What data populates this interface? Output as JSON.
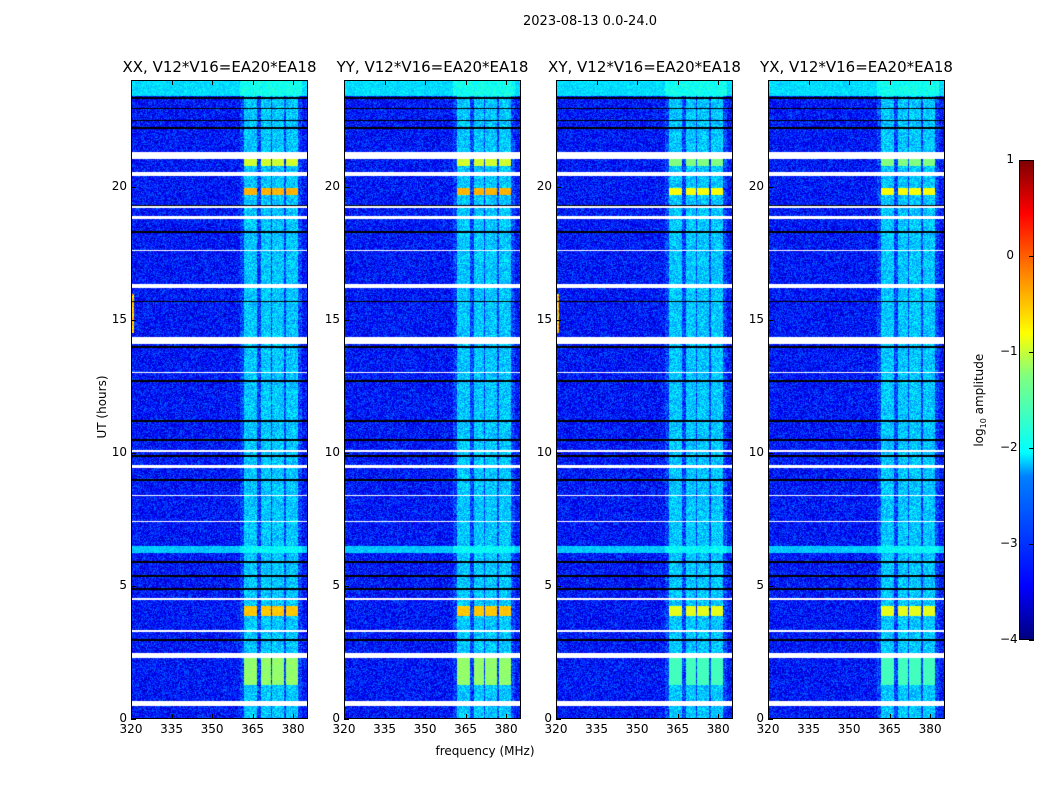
{
  "chart_data": {
    "type": "heatmap",
    "title": "2023-08-13 0.0-24.0",
    "xlabel": "frequency (MHz)",
    "ylabel": "UT (hours)",
    "xlim": [
      320,
      385.5
    ],
    "ylim": [
      0,
      24
    ],
    "xticks": [
      "320",
      "335",
      "350",
      "365",
      "380"
    ],
    "xtick_values": [
      320,
      335,
      350,
      365,
      380
    ],
    "yticks": [
      "0",
      "5",
      "10",
      "15",
      "20"
    ],
    "ytick_values": [
      0,
      5,
      10,
      15,
      20
    ],
    "panels": [
      {
        "title": "XX, V12*V16=EA20*EA18",
        "left_edge_rfi": true,
        "strong_blocks": true
      },
      {
        "title": "YY, V12*V16=EA20*EA18",
        "left_edge_rfi": false,
        "strong_blocks": true
      },
      {
        "title": "XY, V12*V16=EA20*EA18",
        "left_edge_rfi": true,
        "strong_blocks": false
      },
      {
        "title": "YX, V12*V16=EA20*EA18",
        "left_edge_rfi": false,
        "strong_blocks": false
      }
    ],
    "colorbar": {
      "label_main": "log",
      "label_sub": "10",
      "label_rest": " amplitude",
      "range": [
        -4,
        1
      ],
      "ticks": [
        "1",
        "0",
        "−1",
        "−2",
        "−3",
        "−4"
      ],
      "tick_values": [
        1,
        0,
        -1,
        -2,
        -3,
        -4
      ],
      "colormap": "jet"
    },
    "background_level": -3.3,
    "rfi_bands_mhz": [
      [
        361.5,
        366.3
      ],
      [
        367.9,
        371.6
      ],
      [
        372,
        376.5
      ],
      [
        377.3,
        381.7
      ]
    ],
    "rfi_band_level": -2.4,
    "strong_rfi_hours": [
      {
        "range": [
          3.9,
          4.25
        ],
        "level": -0.6
      },
      {
        "range": [
          19.7,
          19.95
        ],
        "level": -0.5
      },
      {
        "range": [
          20.8,
          21.05
        ],
        "level": -1.1
      },
      {
        "range": [
          1.3,
          2.3
        ],
        "level": -1.4
      }
    ],
    "bright_hours": [
      {
        "range": [
          23.4,
          24
        ],
        "level": -2.3
      },
      {
        "range": [
          6.25,
          6.5
        ],
        "level": -2.4
      }
    ],
    "flagged_hours": [
      [
        21.05,
        21.3
      ],
      [
        20.4,
        20.55
      ],
      [
        19.2,
        19.3
      ],
      [
        18.8,
        18.9
      ],
      [
        17.6,
        17.65
      ],
      [
        16.2,
        16.35
      ],
      [
        14.1,
        14.35
      ],
      [
        13.0,
        13.05
      ],
      [
        10.05,
        10.12
      ],
      [
        9.45,
        9.55
      ],
      [
        8.4,
        8.45
      ],
      [
        7.4,
        7.45
      ],
      [
        4.5,
        4.55
      ],
      [
        3.3,
        3.35
      ],
      [
        2.3,
        2.5
      ],
      [
        0.5,
        0.7
      ]
    ],
    "zero_hours": [
      23.35,
      22.95,
      22.5,
      22.2,
      20.5,
      19.3,
      18.3,
      15.7,
      14.0,
      12.7,
      11.2,
      10.5,
      9.9,
      9.0,
      5.9,
      5.4,
      4.9,
      3.0,
      0.55
    ]
  }
}
